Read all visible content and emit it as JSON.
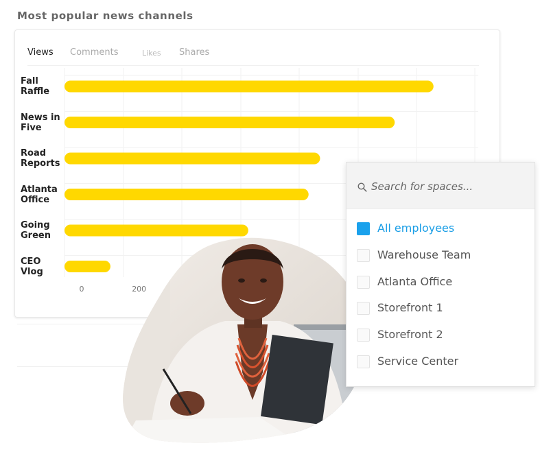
{
  "header": {
    "title": "Most popular news channels"
  },
  "tabs": [
    {
      "label": "Views",
      "active": true
    },
    {
      "label": "Comments",
      "active": false
    },
    {
      "label": "Likes",
      "active": false
    },
    {
      "label": "Shares",
      "active": false
    }
  ],
  "chart_data": {
    "type": "bar",
    "orientation": "horizontal",
    "categories": [
      "Fall Raffle",
      "News in Five",
      "Road Reports",
      "Atlanta Office",
      "Going Green",
      "CEO Vlog"
    ],
    "values": [
      1285,
      1150,
      890,
      850,
      640,
      160
    ],
    "x_ticks": [
      0,
      200
    ],
    "xlim": [
      0,
      1400
    ],
    "bar_color": "#ffd800",
    "grid": true
  },
  "spaces_dropdown": {
    "search_placeholder": "Search for spaces...",
    "accent_color": "#1aa1ec",
    "options": [
      {
        "label": "All employees",
        "checked": true
      },
      {
        "label": "Warehouse Team",
        "checked": false
      },
      {
        "label": "Atlanta Office",
        "checked": false
      },
      {
        "label": "Storefront 1",
        "checked": false
      },
      {
        "label": "Storefront 2",
        "checked": false
      },
      {
        "label": "Service Center",
        "checked": false
      }
    ]
  },
  "photo": {
    "subject": "smiling woman writing at desk"
  }
}
